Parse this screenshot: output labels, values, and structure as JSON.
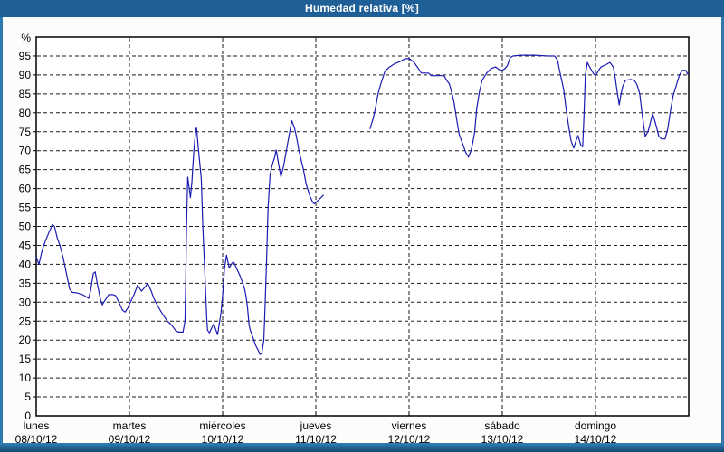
{
  "window": {
    "title": "Humedad relativa [%]"
  },
  "colors": {
    "titlebar_bg": "#1f5f97",
    "titlebar_text": "#ffffff",
    "page_bg": "#fcfdfa",
    "frame": "#2f78ad",
    "plot_bg": "#ffffff",
    "plot_border": "#000000",
    "grid": "#1a1a1a",
    "label": "#000000",
    "line": "#1a1ab2"
  },
  "chart_data": {
    "type": "line",
    "title": "Humedad relativa [%]",
    "ylabel": "%",
    "ylim": [
      0,
      100
    ],
    "ytick_step": 5,
    "yticks": [
      0,
      5,
      10,
      15,
      20,
      25,
      30,
      35,
      40,
      45,
      50,
      55,
      60,
      65,
      70,
      75,
      80,
      85,
      90,
      95
    ],
    "grid": "dashed",
    "legend": "none",
    "x_hours_total": 168,
    "x_days": [
      {
        "name": "lunes",
        "date": "08/10/12"
      },
      {
        "name": "martes",
        "date": "09/10/12"
      },
      {
        "name": "miércoles",
        "date": "10/10/12"
      },
      {
        "name": "jueves",
        "date": "11/10/12"
      },
      {
        "name": "viernes",
        "date": "12/10/12"
      },
      {
        "name": "sábado",
        "date": "13/10/12"
      },
      {
        "name": "domingo",
        "date": "14/10/12"
      }
    ],
    "series": [
      {
        "name": "Humedad relativa",
        "color": "#1a1ab2",
        "unit": "%",
        "segments": [
          [
            [
              0,
              42
            ],
            [
              0.7,
              40
            ],
            [
              1.6,
              44
            ],
            [
              2.3,
              46
            ],
            [
              3.3,
              48.5
            ],
            [
              4.2,
              50.5
            ],
            [
              4.7,
              50
            ],
            [
              5.4,
              47
            ],
            [
              6.1,
              45
            ],
            [
              7,
              41.5
            ],
            [
              7.9,
              37
            ],
            [
              8.6,
              33.5
            ],
            [
              9.3,
              32.6
            ],
            [
              10.7,
              32.4
            ],
            [
              11.9,
              32
            ],
            [
              12.8,
              31.5
            ],
            [
              13.5,
              31
            ],
            [
              14,
              33
            ],
            [
              14.7,
              37.6
            ],
            [
              15.2,
              38
            ],
            [
              15.9,
              34
            ],
            [
              16.6,
              30.5
            ],
            [
              17,
              29.3
            ],
            [
              17.7,
              30.5
            ],
            [
              18.7,
              32
            ],
            [
              19.8,
              32
            ],
            [
              20.5,
              31.7
            ],
            [
              21.5,
              29.5
            ],
            [
              22.2,
              27.9
            ],
            [
              22.9,
              27.4
            ],
            [
              23.6,
              28.5
            ],
            [
              24,
              29.5
            ],
            [
              24.5,
              30.5
            ],
            [
              25.2,
              32
            ],
            [
              26.1,
              34.5
            ],
            [
              27.1,
              32.9
            ],
            [
              28,
              34
            ],
            [
              28.7,
              35
            ],
            [
              29.6,
              33
            ],
            [
              30.3,
              31
            ],
            [
              31.3,
              29
            ],
            [
              32.2,
              27.4
            ],
            [
              33.1,
              26
            ],
            [
              33.8,
              25
            ],
            [
              35,
              23.8
            ],
            [
              35.9,
              22.5
            ],
            [
              36.6,
              22.1
            ],
            [
              37.8,
              22.1
            ],
            [
              38.3,
              25
            ],
            [
              38.5,
              35
            ],
            [
              38.7,
              50
            ],
            [
              39,
              63
            ],
            [
              39.4,
              60
            ],
            [
              39.7,
              57.6
            ],
            [
              40.1,
              62
            ],
            [
              40.6,
              70
            ],
            [
              41.1,
              75.7
            ],
            [
              41.3,
              76
            ],
            [
              41.8,
              70
            ],
            [
              42.5,
              62.6
            ],
            [
              42.9,
              50
            ],
            [
              43.4,
              38
            ],
            [
              43.9,
              26
            ],
            [
              44.1,
              22.6
            ],
            [
              44.6,
              21.9
            ],
            [
              45.7,
              24.3
            ],
            [
              46.7,
              21.4
            ],
            [
              47.6,
              27.4
            ],
            [
              48.1,
              33
            ],
            [
              48.5,
              39
            ],
            [
              49,
              42.4
            ],
            [
              49.7,
              39
            ],
            [
              50.4,
              40.3
            ],
            [
              50.9,
              40.5
            ],
            [
              51.8,
              38.5
            ],
            [
              52.5,
              36.9
            ],
            [
              53.2,
              35
            ],
            [
              53.7,
              33.3
            ],
            [
              54.1,
              31
            ],
            [
              54.4,
              28.6
            ],
            [
              54.8,
              24
            ],
            [
              55.1,
              22.6
            ],
            [
              55.8,
              20.7
            ],
            [
              56.5,
              18.6
            ],
            [
              57.2,
              17.2
            ],
            [
              57.6,
              16.2
            ],
            [
              58.1,
              16.5
            ],
            [
              58.6,
              20
            ],
            [
              58.8,
              25.5
            ],
            [
              59.3,
              40.5
            ],
            [
              59.7,
              54.8
            ],
            [
              60.2,
              63.6
            ],
            [
              60.7,
              66
            ],
            [
              61.4,
              68.3
            ],
            [
              61.8,
              70.2
            ],
            [
              62.5,
              66
            ],
            [
              63,
              63.1
            ],
            [
              63.7,
              66
            ],
            [
              64.4,
              70
            ],
            [
              65.1,
              74
            ],
            [
              65.8,
              77.9
            ],
            [
              66.5,
              76
            ],
            [
              67,
              73.8
            ],
            [
              67.7,
              69.8
            ],
            [
              68.8,
              65
            ],
            [
              69.5,
              61.2
            ],
            [
              70.5,
              57.9
            ],
            [
              71.2,
              56.4
            ],
            [
              71.6,
              56
            ],
            [
              72.8,
              57.1
            ],
            [
              74,
              58.3
            ]
          ],
          [
            [
              85.9,
              75.7
            ],
            [
              86.8,
              78.6
            ],
            [
              87.3,
              81
            ],
            [
              88,
              85
            ],
            [
              88.7,
              87.6
            ],
            [
              89.8,
              91
            ],
            [
              91,
              92.1
            ],
            [
              92.2,
              92.9
            ],
            [
              93.8,
              93.6
            ],
            [
              95,
              94.3
            ],
            [
              96.1,
              94.3
            ],
            [
              97.3,
              93.3
            ],
            [
              98.4,
              91.7
            ],
            [
              99.2,
              90.5
            ],
            [
              101,
              90.5
            ],
            [
              101.7,
              89.8
            ],
            [
              105,
              89.8
            ],
            [
              105.7,
              88.6
            ],
            [
              106.4,
              87.6
            ],
            [
              107.1,
              85
            ],
            [
              107.6,
              82.6
            ],
            [
              108.3,
              78
            ],
            [
              108.9,
              74.3
            ],
            [
              109.9,
              71.5
            ],
            [
              110.6,
              69.5
            ],
            [
              111.3,
              68.3
            ],
            [
              112,
              70.2
            ],
            [
              112.5,
              72.6
            ],
            [
              112.9,
              75
            ],
            [
              113.4,
              81
            ],
            [
              114.1,
              85.5
            ],
            [
              114.8,
              88.6
            ],
            [
              116,
              90.5
            ],
            [
              117.1,
              91.7
            ],
            [
              118.3,
              92.1
            ],
            [
              119.2,
              91.4
            ],
            [
              119.9,
              91.2
            ],
            [
              120.6,
              91.6
            ],
            [
              121.3,
              92.4
            ],
            [
              122,
              94.5
            ],
            [
              122.7,
              95
            ],
            [
              124.8,
              95.2
            ],
            [
              128.3,
              95.2
            ],
            [
              131.8,
              95
            ],
            [
              133.5,
              95
            ],
            [
              134.2,
              94
            ],
            [
              134.9,
              90.5
            ],
            [
              135.8,
              86.2
            ],
            [
              136.5,
              80.5
            ],
            [
              137.2,
              75.7
            ],
            [
              137.7,
              72.6
            ],
            [
              138.4,
              70.7
            ],
            [
              139.1,
              73
            ],
            [
              139.5,
              74
            ],
            [
              140.2,
              71.5
            ],
            [
              140.7,
              71
            ],
            [
              141,
              78
            ],
            [
              141.4,
              90
            ],
            [
              141.9,
              93.3
            ],
            [
              142.8,
              91.5
            ],
            [
              143.5,
              90.3
            ],
            [
              144,
              89.8
            ],
            [
              144.7,
              91
            ],
            [
              145.4,
              92.1
            ],
            [
              146.5,
              92.6
            ],
            [
              147.7,
              93.3
            ],
            [
              148.6,
              92.1
            ],
            [
              149.1,
              89
            ],
            [
              149.6,
              85.5
            ],
            [
              150.1,
              82.1
            ],
            [
              150.5,
              84.5
            ],
            [
              151,
              86.9
            ],
            [
              151.7,
              88.6
            ],
            [
              153.1,
              88.8
            ],
            [
              154,
              88.6
            ],
            [
              154.7,
              87.4
            ],
            [
              155.4,
              85
            ],
            [
              155.9,
              80.5
            ],
            [
              156.3,
              77.4
            ],
            [
              156.8,
              73.8
            ],
            [
              157.5,
              75
            ],
            [
              158,
              76.9
            ],
            [
              158.7,
              79.8
            ],
            [
              159.4,
              77.4
            ],
            [
              160.3,
              73.8
            ],
            [
              161,
              73.1
            ],
            [
              161.9,
              73.1
            ],
            [
              162.6,
              75.7
            ],
            [
              163.3,
              80.5
            ],
            [
              164,
              84.5
            ],
            [
              164.9,
              87.6
            ],
            [
              165.6,
              90
            ],
            [
              166.3,
              91.2
            ],
            [
              167.2,
              91.2
            ],
            [
              167.9,
              90
            ]
          ]
        ]
      }
    ]
  }
}
